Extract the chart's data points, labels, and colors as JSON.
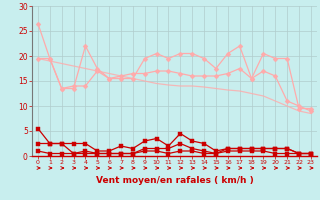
{
  "xlabel": "Vent moyen/en rafales ( km/h )",
  "bg_color": "#c8eeee",
  "grid_color": "#b0cccc",
  "dark_red": "#cc0000",
  "light_pink": "#ffaaaa",
  "xticks": [
    0,
    1,
    2,
    3,
    4,
    5,
    6,
    7,
    8,
    9,
    10,
    11,
    12,
    13,
    14,
    15,
    16,
    17,
    18,
    19,
    20,
    21,
    22,
    23
  ],
  "yticks": [
    0,
    5,
    10,
    15,
    20,
    25,
    30
  ],
  "ylim": [
    0,
    30
  ],
  "xlim": [
    -0.5,
    23.5
  ],
  "series_light_1": [
    26.5,
    19.5,
    13.5,
    13.5,
    22,
    17.5,
    15.5,
    15.5,
    15.5,
    19.5,
    20.5,
    19.5,
    20.5,
    20.5,
    19.5,
    17.5,
    20.5,
    22,
    15.5,
    20.5,
    19.5,
    19.5,
    9.5,
    9.5
  ],
  "series_light_2": [
    19.5,
    19.5,
    13.5,
    14,
    14,
    17,
    15.5,
    16,
    16.5,
    16.5,
    17,
    17,
    16.5,
    16,
    16,
    16,
    16.5,
    17.5,
    15.5,
    17,
    16,
    11,
    10,
    9
  ],
  "series_light_trend": [
    19.5,
    19,
    18.5,
    18,
    17.5,
    17,
    16.5,
    16,
    15.5,
    15,
    14.5,
    14.2,
    14,
    14,
    13.8,
    13.5,
    13.2,
    13,
    12.5,
    12,
    11,
    10,
    9,
    8.5
  ],
  "series_dark_1": [
    5.5,
    2.5,
    2.5,
    2.5,
    2.5,
    1,
    1,
    2,
    1.5,
    3,
    3.5,
    2,
    4.5,
    3,
    2.5,
    1,
    1.5,
    1.5,
    1.5,
    1.5,
    1.5,
    1.5,
    0.5,
    0.5
  ],
  "series_dark_2": [
    1,
    0.5,
    0.5,
    0.5,
    1,
    0.5,
    0.5,
    0.5,
    0.5,
    1,
    1,
    0.5,
    1,
    1,
    0.5,
    0.5,
    1,
    1,
    1,
    1,
    0.5,
    0.5,
    0.5,
    0.5
  ],
  "series_dark_3": [
    2.5,
    2.5,
    2.5,
    0.5,
    0.5,
    0.5,
    0.5,
    0.5,
    0.5,
    1.5,
    1.5,
    1.5,
    2.5,
    1.5,
    1,
    0.5,
    1.5,
    1.5,
    1.5,
    1.5,
    1.5,
    1.5,
    0.5,
    0.5
  ]
}
